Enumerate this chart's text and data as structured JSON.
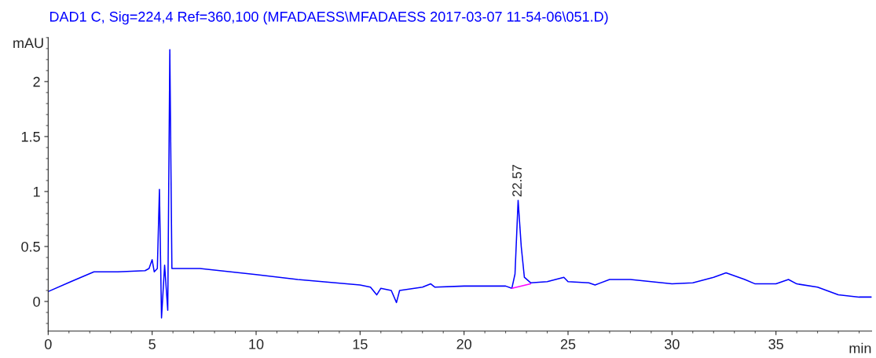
{
  "chart_data": {
    "type": "line",
    "title": "DAD1 C, Sig=224,4 Ref=360,100 (MFADAESS\\MFADAESS 2017-03-07 11-54-06\\051.D)",
    "xlabel": "min",
    "ylabel": "mAU",
    "xlim": [
      0,
      39.6
    ],
    "ylim": [
      -0.27,
      2.4
    ],
    "xticks": [
      0,
      5,
      10,
      15,
      20,
      25,
      30,
      35
    ],
    "yticks": [
      0,
      0.5,
      1,
      1.5,
      2
    ],
    "grid": false,
    "legend": false,
    "series": [
      {
        "color": "#0000ff",
        "x": [
          0,
          1.09,
          2.2,
          3.35,
          4.66,
          4.85,
          5.0,
          5.1,
          5.25,
          5.35,
          5.45,
          5.6,
          5.75,
          5.85,
          5.95,
          7.3,
          10,
          12,
          15,
          15.5,
          15.8,
          16.0,
          16.5,
          16.75,
          16.9,
          18,
          18.4,
          18.6,
          20,
          22,
          22.3,
          22.45,
          22.6,
          22.75,
          22.9,
          23.2,
          24,
          24.8,
          25,
          26,
          26.3,
          27,
          28,
          29,
          30,
          31,
          32,
          32.6,
          33.5,
          34,
          35,
          35.6,
          36,
          37,
          38,
          39,
          39.6
        ],
        "values": [
          0.09,
          0.18,
          0.27,
          0.27,
          0.28,
          0.3,
          0.38,
          0.27,
          0.3,
          1.02,
          -0.15,
          0.33,
          -0.08,
          2.29,
          0.3,
          0.3,
          0.245,
          0.2,
          0.15,
          0.13,
          0.06,
          0.12,
          0.1,
          -0.01,
          0.1,
          0.13,
          0.16,
          0.13,
          0.14,
          0.14,
          0.12,
          0.25,
          0.92,
          0.5,
          0.22,
          0.17,
          0.18,
          0.22,
          0.18,
          0.17,
          0.15,
          0.2,
          0.2,
          0.18,
          0.16,
          0.17,
          0.22,
          0.26,
          0.2,
          0.16,
          0.16,
          0.2,
          0.16,
          0.13,
          0.06,
          0.04,
          0.04
        ]
      },
      {
        "color": "#ff00ff",
        "x": [
          22.3,
          23.2
        ],
        "values": [
          0.12,
          0.16
        ]
      }
    ],
    "annotations": [
      {
        "text": "22.57",
        "x": 22.6,
        "y": 0.92
      }
    ]
  }
}
